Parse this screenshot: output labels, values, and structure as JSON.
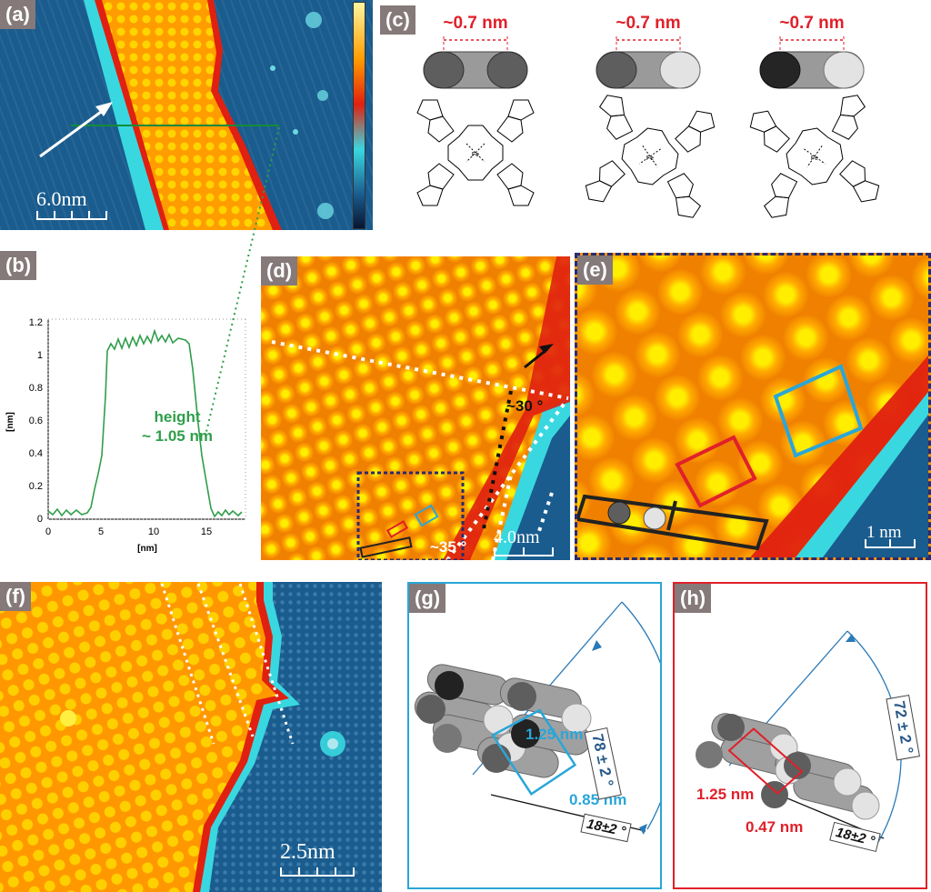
{
  "panels": {
    "a": {
      "label": "(a)",
      "scale": "6.0nm"
    },
    "b": {
      "label": "(b)",
      "y_axis_label": "[nm]",
      "x_axis_label": "[nm]",
      "y_ticks": [
        "0",
        "0.2",
        "0.4",
        "0.6",
        "0.8",
        "1",
        "1.2"
      ],
      "x_ticks": [
        "0",
        "5",
        "10",
        "15"
      ],
      "annotation_line1": "height",
      "annotation_line2": "~ 1.05 nm"
    },
    "c": {
      "label": "(c)",
      "distances": [
        "~0.7 nm",
        "~0.7 nm",
        "~0.7 nm"
      ],
      "atom_fe": "Fe",
      "atom_n": "N"
    },
    "d": {
      "label": "(d)",
      "scale": "4.0nm",
      "angle1": "~30 °",
      "angle2": "~35 °"
    },
    "e": {
      "label": "(e)",
      "scale": "1 nm"
    },
    "f": {
      "label": "(f)",
      "scale": "2.5nm"
    },
    "g": {
      "label": "(g)",
      "d1": "1.25 nm",
      "d2": "0.85 nm",
      "angle_big": "78 ± 2 °",
      "angle_small": "18±2 °"
    },
    "h": {
      "label": "(h)",
      "d1": "1.25 nm",
      "d2": "0.47 nm",
      "angle_big": "72 ± 2 °",
      "angle_small": "18±2 °"
    }
  },
  "colors": {
    "green": "#2e9e4a",
    "red": "#e0202a",
    "blue": "#2aa6d8",
    "stm_orange": "#ff9a00",
    "stm_blue": "#1a5d8f",
    "dark_navy": "#2b2b6e"
  }
}
